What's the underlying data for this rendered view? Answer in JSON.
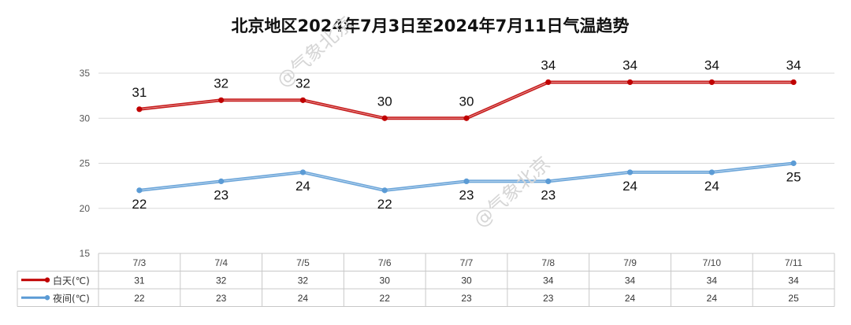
{
  "chart_data": {
    "type": "line",
    "title": "北京地区2024年7月3日至2024年7月11日气温趋势",
    "categories": [
      "7/3",
      "7/4",
      "7/5",
      "7/6",
      "7/7",
      "7/8",
      "7/9",
      "7/10",
      "7/11"
    ],
    "series": [
      {
        "name": "白天(℃)",
        "values": [
          31,
          32,
          32,
          30,
          30,
          34,
          34,
          34,
          34
        ],
        "color": "#c00000"
      },
      {
        "name": "夜间(℃)",
        "values": [
          22,
          23,
          24,
          22,
          23,
          23,
          24,
          24,
          25
        ],
        "color": "#5b9bd5"
      }
    ],
    "ylim": [
      15,
      35
    ],
    "yticks": [
      15,
      20,
      25,
      30,
      35
    ],
    "grid": true,
    "legend": "data-table",
    "data_table": true
  },
  "watermark": {
    "text": "@气象北京"
  }
}
